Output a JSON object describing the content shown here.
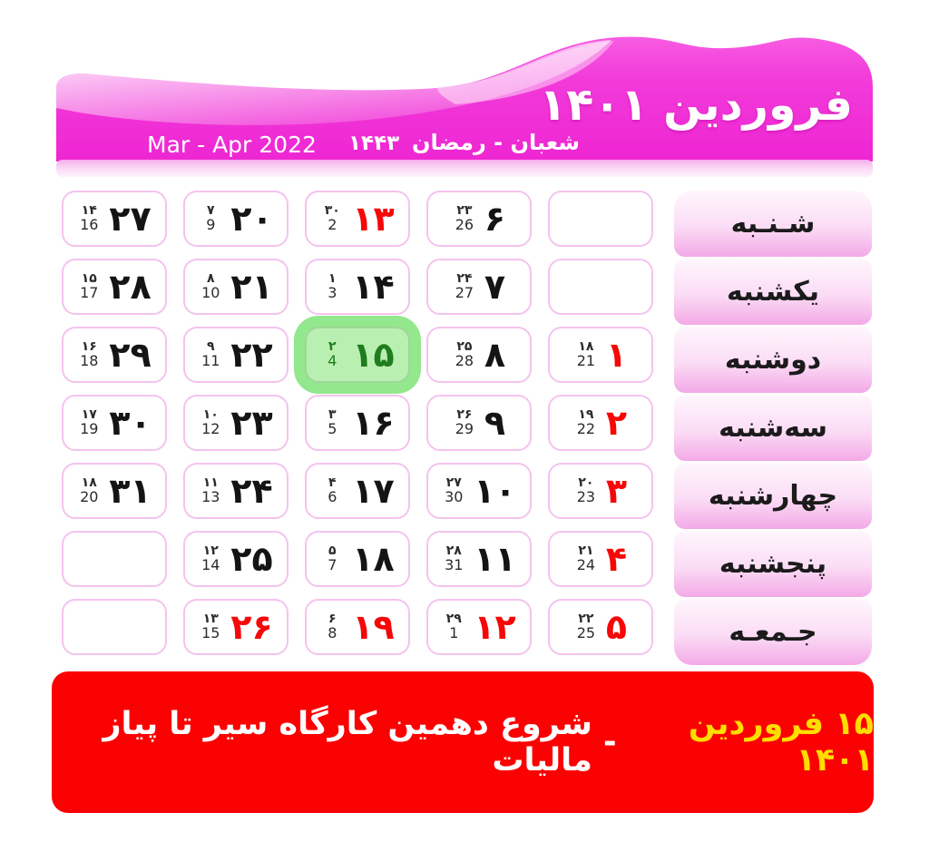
{
  "header": {
    "title": "فروردین ۱۴۰۱",
    "gregorian_range": "Mar - Apr 2022",
    "hijri_year": "۱۴۴۳",
    "hijri_months": "شعبان - رمضان"
  },
  "colors": {
    "header_magenta": "#f036d8",
    "cell_border_pink": "#f4c3ee",
    "holiday_red": "#f70707",
    "selected_green_halo": "#93e78d",
    "selected_green_text": "#1f7d1d",
    "banner_red": "#fb0202",
    "banner_yellow": "#ffdd00"
  },
  "grid": {
    "rows": [
      {
        "day_name": "شـنـبه",
        "cells": [
          {
            "jalali": "۲۷",
            "hijri": "۱۴",
            "gregorian": "16",
            "type": "normal"
          },
          {
            "jalali": "۲۰",
            "hijri": "۷",
            "gregorian": "9",
            "type": "normal"
          },
          {
            "jalali": "۱۳",
            "hijri": "۳۰",
            "gregorian": "2",
            "type": "holiday"
          },
          {
            "jalali": "۶",
            "hijri": "۲۳",
            "gregorian": "26",
            "type": "normal"
          },
          {
            "jalali": "",
            "hijri": "",
            "gregorian": "",
            "type": "empty"
          }
        ]
      },
      {
        "day_name": "یکشنبه",
        "cells": [
          {
            "jalali": "۲۸",
            "hijri": "۱۵",
            "gregorian": "17",
            "type": "normal"
          },
          {
            "jalali": "۲۱",
            "hijri": "۸",
            "gregorian": "10",
            "type": "normal"
          },
          {
            "jalali": "۱۴",
            "hijri": "۱",
            "gregorian": "3",
            "type": "normal"
          },
          {
            "jalali": "۷",
            "hijri": "۲۴",
            "gregorian": "27",
            "type": "normal"
          },
          {
            "jalali": "",
            "hijri": "",
            "gregorian": "",
            "type": "empty"
          }
        ]
      },
      {
        "day_name": "دوشنبه",
        "cells": [
          {
            "jalali": "۲۹",
            "hijri": "۱۶",
            "gregorian": "18",
            "type": "normal"
          },
          {
            "jalali": "۲۲",
            "hijri": "۹",
            "gregorian": "11",
            "type": "normal"
          },
          {
            "jalali": "۱۵",
            "hijri": "۲",
            "gregorian": "4",
            "type": "selected"
          },
          {
            "jalali": "۸",
            "hijri": "۲۵",
            "gregorian": "28",
            "type": "normal"
          },
          {
            "jalali": "۱",
            "hijri": "۱۸",
            "gregorian": "21",
            "type": "holiday"
          }
        ]
      },
      {
        "day_name": "سه‌شنبه",
        "cells": [
          {
            "jalali": "۳۰",
            "hijri": "۱۷",
            "gregorian": "19",
            "type": "normal"
          },
          {
            "jalali": "۲۳",
            "hijri": "۱۰",
            "gregorian": "12",
            "type": "normal"
          },
          {
            "jalali": "۱۶",
            "hijri": "۳",
            "gregorian": "5",
            "type": "normal"
          },
          {
            "jalali": "۹",
            "hijri": "۲۶",
            "gregorian": "29",
            "type": "normal"
          },
          {
            "jalali": "۲",
            "hijri": "۱۹",
            "gregorian": "22",
            "type": "holiday"
          }
        ]
      },
      {
        "day_name": "چهارشنبه",
        "cells": [
          {
            "jalali": "۳۱",
            "hijri": "۱۸",
            "gregorian": "20",
            "type": "normal"
          },
          {
            "jalali": "۲۴",
            "hijri": "۱۱",
            "gregorian": "13",
            "type": "normal"
          },
          {
            "jalali": "۱۷",
            "hijri": "۴",
            "gregorian": "6",
            "type": "normal"
          },
          {
            "jalali": "۱۰",
            "hijri": "۲۷",
            "gregorian": "30",
            "type": "normal"
          },
          {
            "jalali": "۳",
            "hijri": "۲۰",
            "gregorian": "23",
            "type": "holiday"
          }
        ]
      },
      {
        "day_name": "پنجشنبه",
        "cells": [
          {
            "jalali": "",
            "hijri": "",
            "gregorian": "",
            "type": "empty"
          },
          {
            "jalali": "۲۵",
            "hijri": "۱۲",
            "gregorian": "14",
            "type": "normal"
          },
          {
            "jalali": "۱۸",
            "hijri": "۵",
            "gregorian": "7",
            "type": "normal"
          },
          {
            "jalali": "۱۱",
            "hijri": "۲۸",
            "gregorian": "31",
            "type": "normal"
          },
          {
            "jalali": "۴",
            "hijri": "۲۱",
            "gregorian": "24",
            "type": "holiday"
          }
        ]
      },
      {
        "day_name": "جـمعـه",
        "cells": [
          {
            "jalali": "",
            "hijri": "",
            "gregorian": "",
            "type": "empty"
          },
          {
            "jalali": "۲۶",
            "hijri": "۱۳",
            "gregorian": "15",
            "type": "holiday"
          },
          {
            "jalali": "۱۹",
            "hijri": "۶",
            "gregorian": "8",
            "type": "holiday"
          },
          {
            "jalali": "۱۲",
            "hijri": "۲۹",
            "gregorian": "1",
            "type": "holiday"
          },
          {
            "jalali": "۵",
            "hijri": "۲۲",
            "gregorian": "25",
            "type": "holiday"
          }
        ]
      }
    ]
  },
  "footer": {
    "date_label": "۱۵ فروردین ۱۴۰۱",
    "separator": "-",
    "event_label": "شروع دهمین کارگاه سیر تا پیاز مالیات"
  }
}
